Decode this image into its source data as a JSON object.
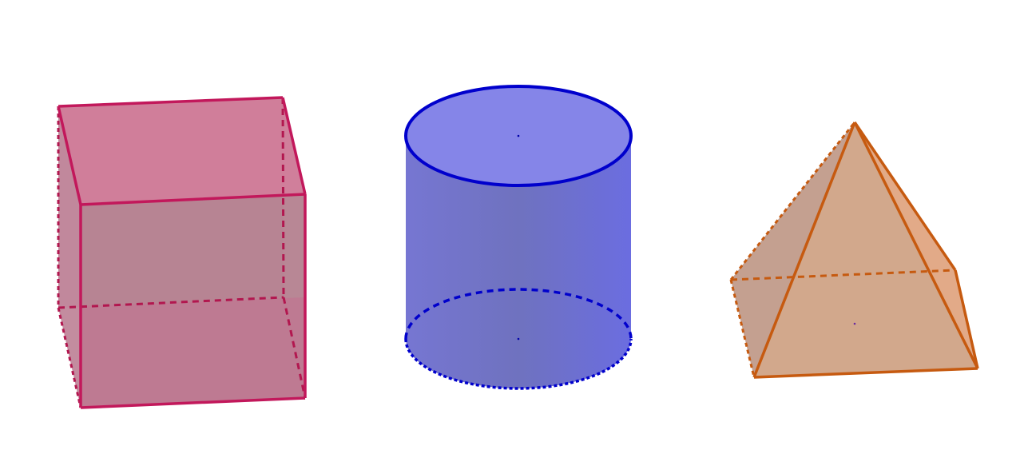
{
  "shapes": [
    {
      "kind": "cube",
      "color": "#c2185b",
      "fill_top": "#cd7896",
      "fill_front": "#b07a89",
      "fill_side": "#b27d8c"
    },
    {
      "kind": "cylinder",
      "color": "#0000cc",
      "fill_top": "#8585e8",
      "fill_body": "#6f72cc"
    },
    {
      "kind": "square-pyramid",
      "color": "#c65a10",
      "fill_left": "#c4a090",
      "fill_front": "#d2a88c",
      "fill_right": "#e2aa88"
    }
  ]
}
